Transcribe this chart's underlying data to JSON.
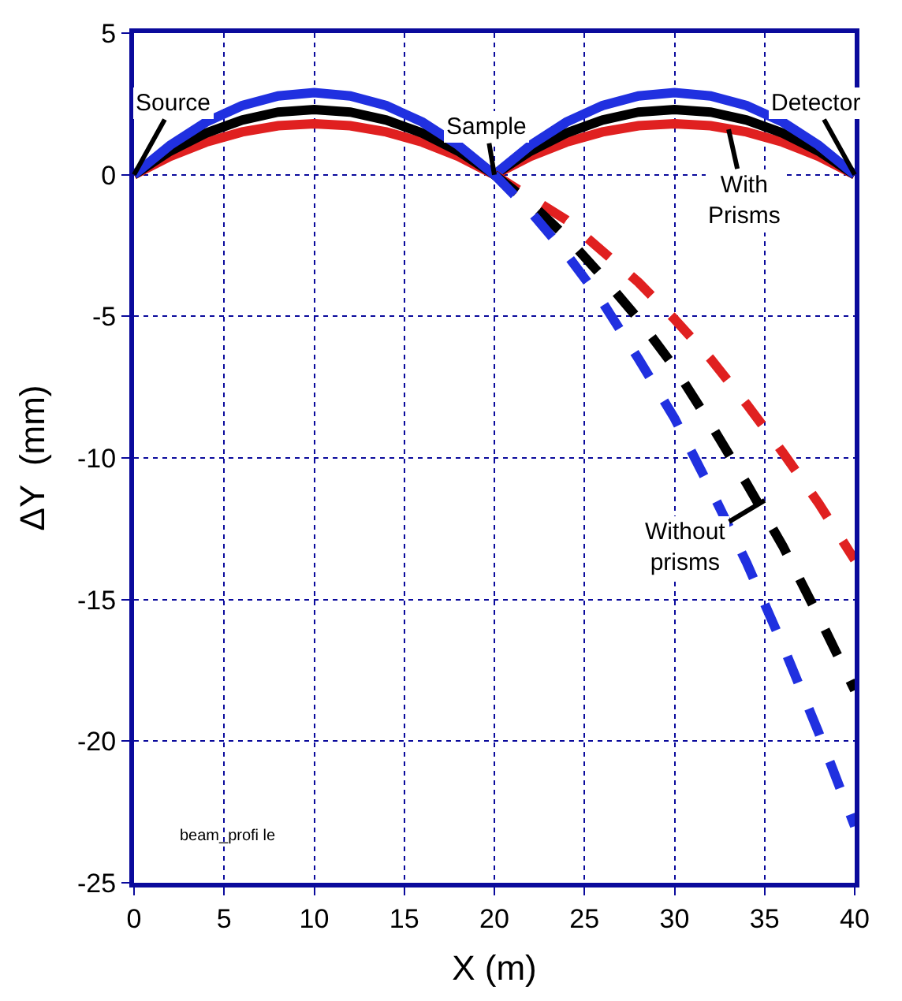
{
  "chart_data": {
    "type": "line",
    "xlabel": "X (m)",
    "ylabel": "ΔY  (mm)",
    "xlim": [
      0,
      40
    ],
    "xticks": [
      0,
      5,
      10,
      15,
      20,
      25,
      30,
      35,
      40
    ],
    "ylim": [
      -25,
      5
    ],
    "yticks": [
      -25,
      -20,
      -15,
      -10,
      -5,
      0,
      5
    ],
    "grid": true,
    "marker": "none",
    "series": [
      {
        "color": "#e02020",
        "line_style": "solid",
        "x": [
          0,
          2,
          4,
          6,
          8,
          10,
          12,
          14,
          16,
          18,
          20,
          22,
          24,
          26,
          28,
          30,
          32,
          34,
          36,
          38,
          40
        ],
        "values": [
          0,
          0.65,
          1.15,
          1.51,
          1.73,
          1.8,
          1.73,
          1.51,
          1.15,
          0.65,
          0,
          0.65,
          1.15,
          1.51,
          1.73,
          1.8,
          1.73,
          1.51,
          1.15,
          0.65,
          0
        ]
      },
      {
        "color": "#000000",
        "line_style": "solid",
        "x": [
          0,
          2,
          4,
          6,
          8,
          10,
          12,
          14,
          16,
          18,
          20,
          22,
          24,
          26,
          28,
          30,
          32,
          34,
          36,
          38,
          40
        ],
        "values": [
          0,
          0.83,
          1.47,
          1.93,
          2.21,
          2.3,
          2.21,
          1.93,
          1.47,
          0.83,
          0,
          0.83,
          1.47,
          1.93,
          2.21,
          2.3,
          2.21,
          1.93,
          1.47,
          0.83,
          0
        ]
      },
      {
        "color": "#2030e0",
        "line_style": "solid",
        "x": [
          0,
          2,
          4,
          6,
          8,
          10,
          12,
          14,
          16,
          18,
          20,
          22,
          24,
          26,
          28,
          30,
          32,
          34,
          36,
          38,
          40
        ],
        "values": [
          0,
          1.04,
          1.86,
          2.44,
          2.78,
          2.9,
          2.78,
          2.44,
          1.86,
          1.04,
          0,
          1.04,
          1.86,
          2.44,
          2.78,
          2.9,
          2.78,
          2.44,
          1.86,
          1.04,
          0
        ]
      },
      {
        "color": "#e02020",
        "line_style": "dashed",
        "x": [
          20,
          22,
          24,
          26,
          28,
          30,
          32,
          34,
          36,
          38,
          40
        ],
        "values": [
          0,
          -0.8,
          -1.6,
          -2.7,
          -3.8,
          -5.1,
          -6.5,
          -8.1,
          -9.8,
          -11.6,
          -13.6
        ]
      },
      {
        "color": "#000000",
        "line_style": "dashed",
        "x": [
          20,
          22,
          24,
          26,
          28,
          30,
          32,
          34,
          36,
          38,
          40
        ],
        "values": [
          0,
          -1.0,
          -2.2,
          -3.6,
          -5.1,
          -6.8,
          -8.8,
          -10.9,
          -13.1,
          -15.6,
          -18.2
        ]
      },
      {
        "color": "#2030e0",
        "line_style": "dashed",
        "x": [
          20,
          22,
          24,
          26,
          28,
          30,
          32,
          34,
          36,
          38,
          40
        ],
        "values": [
          0,
          -1.3,
          -2.8,
          -4.5,
          -6.5,
          -8.6,
          -11.1,
          -13.7,
          -16.6,
          -19.7,
          -23.0
        ]
      }
    ],
    "annotations": [
      {
        "text": "Source",
        "x": 0,
        "y": 0
      },
      {
        "text": "Sample",
        "x": 20,
        "y": 0
      },
      {
        "text": "Detector",
        "x": 40,
        "y": 0
      },
      {
        "text": "With\nPrisms",
        "x": 33,
        "y": 1.6
      },
      {
        "text": "Without\nprisms",
        "x": 35,
        "y": -11.5
      },
      "beam_profi le"
    ]
  }
}
